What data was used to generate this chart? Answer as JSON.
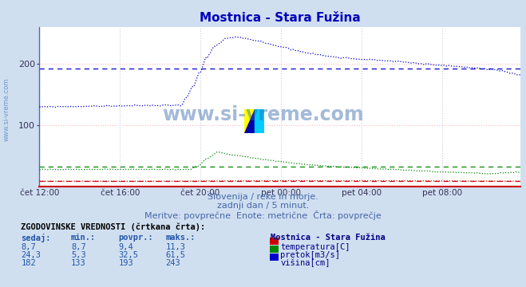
{
  "title": "Mostnica - Stara Fužina",
  "title_color": "#0000bb",
  "bg_color": "#d0dff0",
  "plot_bg_color": "#ffffff",
  "grid_color_h": "#ffbbbb",
  "grid_color_v": "#ccccdd",
  "x_labels": [
    "čet 12:00",
    "čet 16:00",
    "čet 20:00",
    "pet 00:00",
    "pet 04:00",
    "pet 08:00"
  ],
  "x_ticks_idx": [
    0,
    48,
    96,
    144,
    192,
    240
  ],
  "n_points": 288,
  "ylim": [
    0,
    260
  ],
  "yticks": [
    100,
    200
  ],
  "subtitle1": "Slovenija / reke in morje.",
  "subtitle2": "zadnji dan / 5 minut.",
  "subtitle3": "Meritve: povrpečne  Enote: metrične  Črta: povrpečje",
  "subtitle3_real": "Meritve: povprečne  Enote: metrične  Črta: povprečje",
  "subtitle_color": "#4466aa",
  "table_header": "ZGODOVINSKE VREDNOSTI (črtkana črta):",
  "table_cols": [
    "sedaj:",
    "min.:",
    "povpr.:",
    "maks.:"
  ],
  "table_station": "Mostnica - Stara Fužina",
  "table_rows": [
    {
      "sedaj": "8,7",
      "min": "8,7",
      "povpr": "9,4",
      "maks": "11,3",
      "label": "temperatura[C]",
      "color": "#cc0000"
    },
    {
      "sedaj": "24,3",
      "min": "5,3",
      "povpr": "32,5",
      "maks": "61,5",
      "label": "pretok[m3/s]",
      "color": "#008800"
    },
    {
      "sedaj": "182",
      "min": "133",
      "povpr": "193",
      "maks": "243",
      "label": "višina[cm]",
      "color": "#0000cc"
    }
  ],
  "temp_avg": 9.4,
  "pretok_avg": 32.5,
  "visina_avg": 193.0,
  "watermark": "www.si-vreme.com",
  "watermark_color": "#3366aa",
  "side_text": "www.si-vreme.com",
  "side_text_color": "#4477bb"
}
